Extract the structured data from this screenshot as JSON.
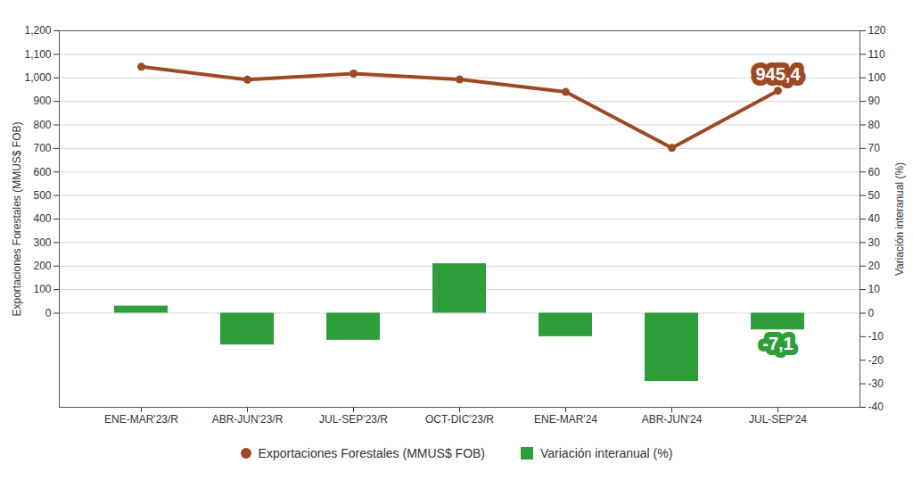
{
  "chart_data": {
    "type": "bar",
    "categories": [
      "ENE-MAR'23/R",
      "ABR-JUN'23/R",
      "JUL-SEP'23/R",
      "OCT-DIC'23/R",
      "ENE-MAR'24",
      "ABR-JUN'24",
      "JUL-SEP'24"
    ],
    "series": [
      {
        "name": "Exportaciones Forestales (MMUS$ FOB)",
        "type": "line",
        "color": "#9c4a25",
        "marker": "circle",
        "values": [
          1047,
          992,
          1018,
          993,
          940,
          702,
          945.4
        ]
      },
      {
        "name": "Variación interanual (%)",
        "type": "bar",
        "axis": "y2",
        "color": "#2e9e3a",
        "values": [
          3,
          -13.5,
          -11.5,
          21,
          -10,
          -29,
          -7.1
        ]
      }
    ],
    "ylabel": "Exportaciones Forestales (MMUS$ FOB)",
    "y2label": "Variación interanual (%)",
    "ylim": [
      -400,
      1200
    ],
    "yticks": [
      0,
      100,
      200,
      300,
      400,
      500,
      600,
      700,
      800,
      900,
      1000,
      1100,
      1200
    ],
    "y2lim": [
      -40,
      120
    ],
    "y2ticks": [
      -40,
      -30,
      -20,
      -10,
      0,
      10,
      20,
      30,
      40,
      50,
      60,
      70,
      80,
      90,
      100,
      110,
      120
    ],
    "grid": true,
    "legend": "bottom",
    "annotations": [
      {
        "series": 0,
        "category": "JUL-SEP'24",
        "text": "945,4"
      },
      {
        "series": 1,
        "category": "JUL-SEP'24",
        "text": "-7,1"
      }
    ]
  }
}
